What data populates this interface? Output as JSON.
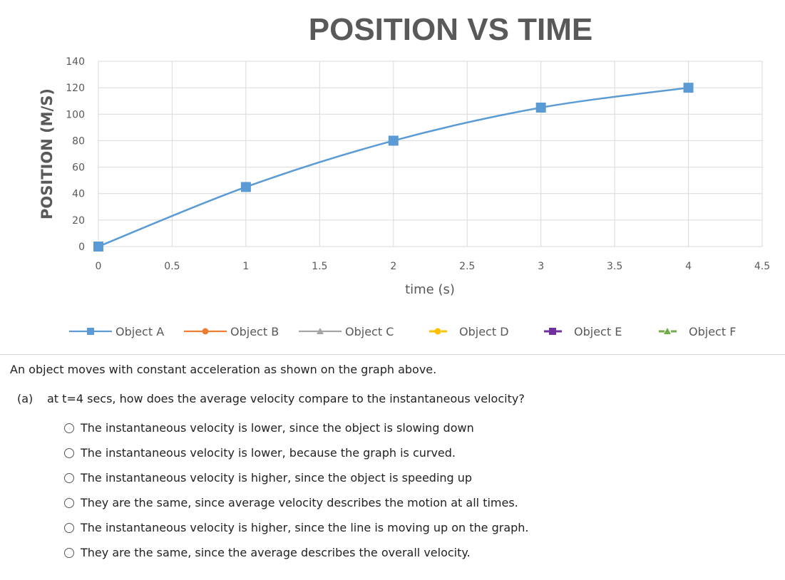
{
  "chart_data": {
    "type": "line",
    "title": "POSITION VS TIME",
    "xlabel": "time (s)",
    "ylabel": "POSITION (M/S)",
    "xlim": [
      0,
      4.5
    ],
    "ylim": [
      0,
      140
    ],
    "x_ticks": [
      "0",
      "0.5",
      "1",
      "1.5",
      "2",
      "2.5",
      "3",
      "3.5",
      "4",
      "4.5"
    ],
    "y_ticks": [
      "0",
      "20",
      "40",
      "60",
      "80",
      "100",
      "120",
      "140"
    ],
    "grid": true,
    "legend_position": "bottom",
    "series": [
      {
        "name": "Object A",
        "marker": "square",
        "color": "#5b9bd5",
        "line": "solid",
        "x": [
          0,
          1,
          2,
          3,
          4
        ],
        "y": [
          0,
          45,
          80,
          105,
          120
        ]
      },
      {
        "name": "Object B",
        "marker": "circle",
        "color": "#ed7d31",
        "line": "solid",
        "x": [],
        "y": []
      },
      {
        "name": "Object C",
        "marker": "triangle",
        "color": "#a5a5a5",
        "line": "solid",
        "x": [],
        "y": []
      },
      {
        "name": "Object D",
        "marker": "circle",
        "color": "#ffc000",
        "line": "dashed",
        "x": [],
        "y": []
      },
      {
        "name": "Object E",
        "marker": "square",
        "color": "#7030a0",
        "line": "dashed",
        "x": [],
        "y": []
      },
      {
        "name": "Object F",
        "marker": "triangle",
        "color": "#70ad47",
        "line": "dashed",
        "x": [],
        "y": []
      }
    ]
  },
  "question": {
    "intro": "An object moves with constant acceleration as shown on the graph above.",
    "part_label": "(a)",
    "part_text": "at t=4 secs, how does the average velocity compare to the instantaneous velocity?",
    "options": [
      "The instantaneous velocity is lower, since the object is slowing down",
      "The instantaneous velocity is lower, because the graph is curved.",
      "The instantaneous velocity is higher, since the object is speeding up",
      "They are the same, since average velocity describes the motion at all times.",
      "The instantaneous velocity is higher, since the line is moving up on the graph.",
      "They are the same, since the average describes the overall velocity."
    ]
  }
}
